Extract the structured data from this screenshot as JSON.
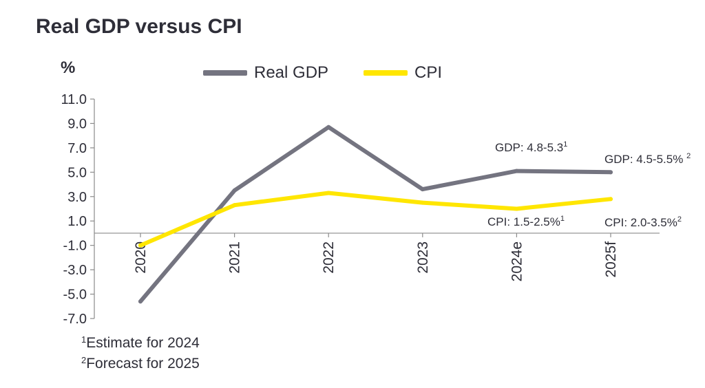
{
  "chart_data": {
    "type": "line",
    "title": "Real GDP versus CPI",
    "ylabel": "%",
    "xlabel": "",
    "categories": [
      "2020",
      "2021",
      "2022",
      "2023",
      "2024e",
      "2025f"
    ],
    "ylim": [
      -7.0,
      11.0
    ],
    "yticks": [
      "11.0",
      "9.0",
      "7.0",
      "5.0",
      "3.0",
      "1.0",
      "-1.0",
      "-3.0",
      "-5.0",
      "-7.0"
    ],
    "series": [
      {
        "name": "Real GDP",
        "color": "#747480",
        "values": [
          -5.6,
          3.5,
          8.7,
          3.6,
          5.1,
          5.0
        ]
      },
      {
        "name": "CPI",
        "color": "#ffe600",
        "values": [
          -1.0,
          2.3,
          3.3,
          2.5,
          2.0,
          2.8
        ]
      }
    ],
    "legend_position": "top",
    "grid": false,
    "annotations": [
      {
        "id": "gdp-2024",
        "text": "GDP: 4.8-5.3",
        "sup": "1"
      },
      {
        "id": "gdp-2025",
        "text": "GDP: 4.5-5.5% ",
        "sup": "2"
      },
      {
        "id": "cpi-2024",
        "text": "CPI: 1.5-2.5%",
        "sup": "1"
      },
      {
        "id": "cpi-2025",
        "text": "CPI: 2.0-3.5%",
        "sup": "2"
      }
    ],
    "footnotes": [
      {
        "sup": "1",
        "text": "Estimate for 2024"
      },
      {
        "sup": "2",
        "text": "Forecast for 2025"
      }
    ]
  }
}
